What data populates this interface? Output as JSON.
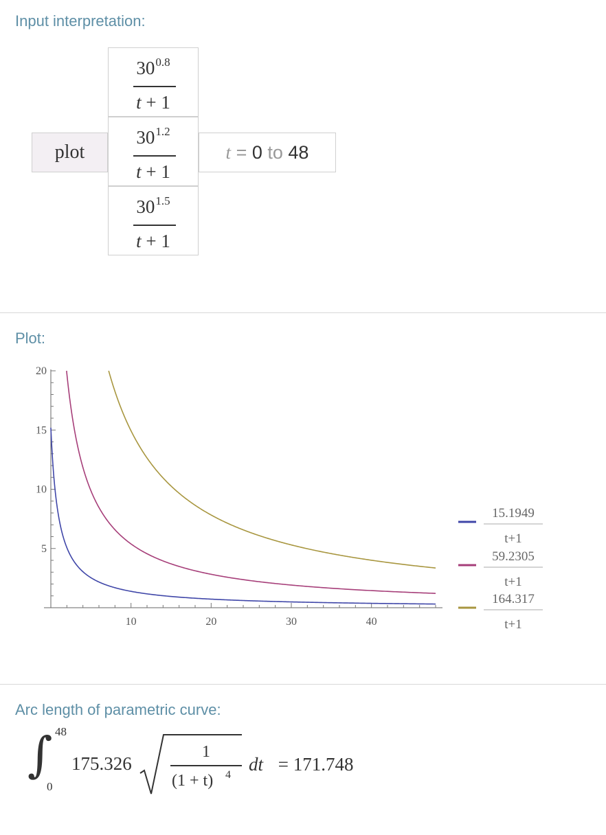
{
  "pods": {
    "input_title": "Input interpretation:",
    "plot_title": "Plot:",
    "arc_title": "Arc length of parametric curve:"
  },
  "input": {
    "command": "plot",
    "functions": [
      {
        "base": "30",
        "exponent": "0.8",
        "denominator_var": "t",
        "denominator_rest": " + 1"
      },
      {
        "base": "30",
        "exponent": "1.2",
        "denominator_var": "t",
        "denominator_rest": " + 1"
      },
      {
        "base": "30",
        "exponent": "1.5",
        "denominator_var": "t",
        "denominator_rest": " + 1"
      }
    ],
    "range": {
      "var": "t",
      "eq": " = ",
      "from": "0",
      "to_word": " to ",
      "to": "48"
    }
  },
  "chart_data": {
    "type": "line",
    "title": "",
    "xlabel": "",
    "ylabel": "",
    "xlim": [
      0,
      48
    ],
    "ylim": [
      0,
      20
    ],
    "x_ticks": [
      10,
      20,
      30,
      40
    ],
    "y_ticks": [
      5,
      10,
      15,
      20
    ],
    "grid": false,
    "legend_position": "right",
    "series": [
      {
        "name": "15.1949/(t+1)",
        "numerator": 15.1949,
        "legend_num": "15.1949",
        "legend_den": "t+1",
        "color": "#3f46a8"
      },
      {
        "name": "59.2305/(t+1)",
        "numerator": 59.2305,
        "legend_num": "59.2305",
        "legend_den": "t+1",
        "color": "#a63e79"
      },
      {
        "name": "164.317/(t+1)",
        "numerator": 164.317,
        "legend_num": "164.317",
        "legend_den": "t+1",
        "color": "#a8963f"
      }
    ]
  },
  "arc": {
    "upper": "48",
    "lower": "0",
    "coef": "175.326",
    "frac_num": "1",
    "frac_den": "(1 + t)",
    "frac_den_exp": "4",
    "dt": "dt",
    "result": " = 171.748"
  }
}
